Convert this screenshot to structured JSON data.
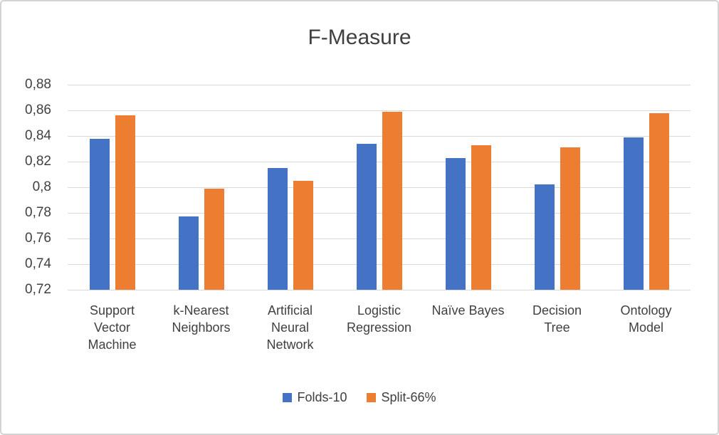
{
  "window": {
    "background": "#ffffff",
    "frame_color": "#d3d3d3"
  },
  "chart_data": {
    "type": "bar",
    "title": "F-Measure",
    "categories": [
      "Support Vector Machine",
      "k-Nearest Neighbors",
      "Artificial Neural Network",
      "Logistic Regression",
      "Naïve Bayes",
      "Decision Tree",
      "Ontology Model"
    ],
    "category_lines": [
      [
        "Support",
        "Vector",
        "Machine"
      ],
      [
        "k-Nearest",
        "Neighbors"
      ],
      [
        "Artificial",
        "Neural",
        "Network"
      ],
      [
        "Logistic",
        "Regression"
      ],
      [
        "Naïve Bayes"
      ],
      [
        "Decision",
        "Tree"
      ],
      [
        "Ontology",
        "Model"
      ]
    ],
    "series": [
      {
        "name": "Folds-10",
        "color": "#4472C4",
        "values": [
          0.838,
          0.777,
          0.815,
          0.834,
          0.823,
          0.802,
          0.839
        ]
      },
      {
        "name": "Split-66%",
        "color": "#ED7D31",
        "values": [
          0.856,
          0.799,
          0.805,
          0.859,
          0.833,
          0.831,
          0.858
        ]
      }
    ],
    "xlabel": "",
    "ylabel": "",
    "ylim": [
      0.72,
      0.88
    ],
    "ytick_step": 0.02,
    "ytick_labels_top_to_bottom": [
      "0,88",
      "0,86",
      "0,84",
      "0,82",
      "0,8",
      "0,78",
      "0,76",
      "0,74",
      "0,72"
    ],
    "decimal_separator": ",",
    "grid": true,
    "gridline_color": "#d9d9d9",
    "text_color": "#404040",
    "legend_position": "bottom"
  }
}
